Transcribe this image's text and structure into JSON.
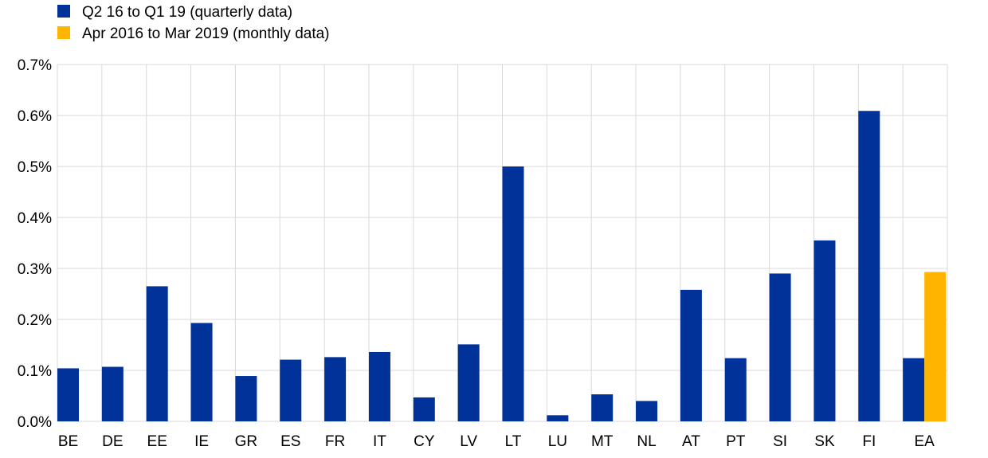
{
  "chart_data": {
    "type": "bar",
    "categories": [
      "BE",
      "DE",
      "EE",
      "IE",
      "GR",
      "ES",
      "FR",
      "IT",
      "CY",
      "LV",
      "LT",
      "LU",
      "MT",
      "NL",
      "AT",
      "PT",
      "SI",
      "SK",
      "FI",
      "EA"
    ],
    "series": [
      {
        "name": "Q2 16 to Q1 19 (quarterly data)",
        "color": "#003299",
        "values": [
          0.104,
          0.107,
          0.265,
          0.193,
          0.089,
          0.121,
          0.126,
          0.136,
          0.047,
          0.151,
          0.5,
          0.012,
          0.053,
          0.04,
          0.258,
          0.124,
          0.29,
          0.355,
          0.609,
          0.124
        ]
      },
      {
        "name": "Apr 2016 to Mar 2019 (monthly data)",
        "color": "#FFB400",
        "values": [
          null,
          null,
          null,
          null,
          null,
          null,
          null,
          null,
          null,
          null,
          null,
          null,
          null,
          null,
          null,
          null,
          null,
          null,
          null,
          0.293
        ]
      }
    ],
    "ylim": [
      0,
      0.7
    ],
    "yticks": [
      0,
      0.1,
      0.2,
      0.3,
      0.4,
      0.5,
      0.6,
      0.7
    ],
    "ytick_labels": [
      "0.0%",
      "0.1%",
      "0.2%",
      "0.3%",
      "0.4%",
      "0.5%",
      "0.6%",
      "0.7%"
    ],
    "grid": true,
    "legend_position": "top-left",
    "title": "",
    "xlabel": "",
    "ylabel": ""
  }
}
